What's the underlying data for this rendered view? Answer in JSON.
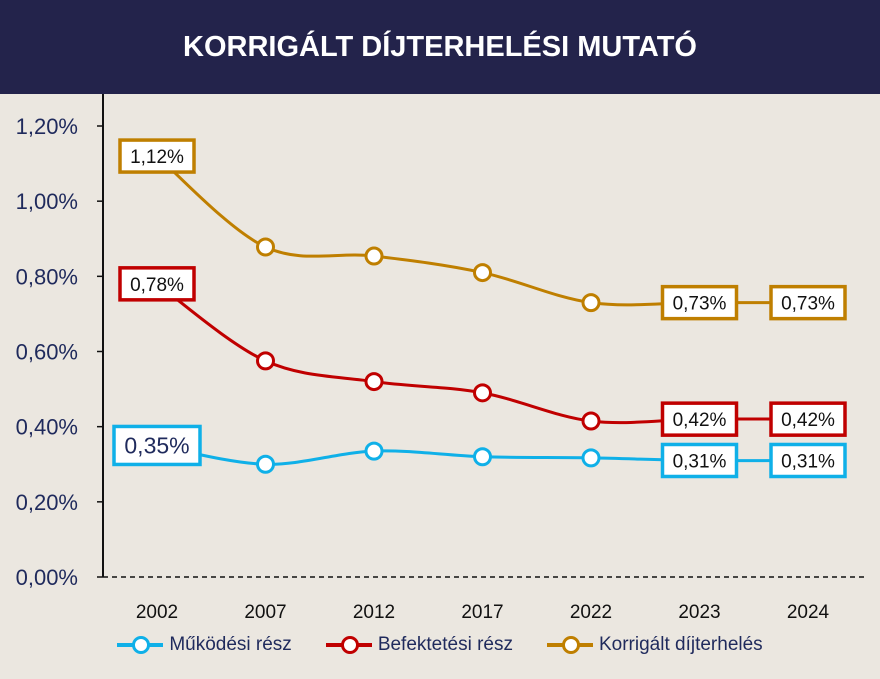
{
  "chart_data": {
    "type": "line",
    "title": "KORRIGÁLT DÍJTERHELÉSI MUTATÓ",
    "categories": [
      "2002",
      "2007",
      "2012",
      "2017",
      "2022",
      "2023",
      "2024"
    ],
    "yticks": [
      "0,00%",
      "0,20%",
      "0,40%",
      "0,60%",
      "0,80%",
      "1,00%",
      "1,20%"
    ],
    "ylim": [
      0,
      1.2
    ],
    "grid": false,
    "legend": "bottom",
    "series": [
      {
        "name": "Működési rész",
        "color": "#0fb0e8",
        "values": [
          0.35,
          0.3,
          0.335,
          0.32,
          0.317,
          0.31,
          0.31
        ],
        "labels": {
          "0": "0,35%",
          "5": "0,31%",
          "6": "0,31%"
        }
      },
      {
        "name": "Befektetési rész",
        "color": "#c00000",
        "values": [
          0.78,
          0.575,
          0.52,
          0.49,
          0.415,
          0.42,
          0.42
        ],
        "labels": {
          "0": "0,78%",
          "5": "0,42%",
          "6": "0,42%"
        }
      },
      {
        "name": "Korrigált díjterhelés",
        "color": "#bf7f00",
        "values": [
          1.12,
          0.878,
          0.854,
          0.81,
          0.73,
          0.73,
          0.73
        ],
        "labels": {
          "0": "1,12%",
          "5": "0,73%",
          "6": "0,73%"
        }
      }
    ]
  }
}
